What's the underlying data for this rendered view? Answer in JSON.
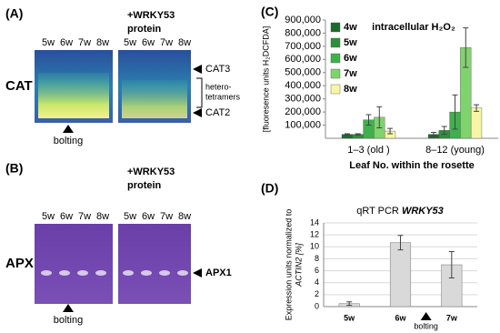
{
  "chart_data": [
    {
      "type": "bar",
      "panel_label": "(C)",
      "title": "intracellular H₂O₂",
      "y_label": "[fluoresence units H₂DCFDA]",
      "x_label": "Leaf No. within the rosette",
      "categories": [
        "1–3 (old )",
        "8–12 (young)"
      ],
      "series": [
        {
          "name": "4w",
          "color": "#1d6b2c",
          "values": [
            30000,
            30000
          ],
          "errors": [
            5000,
            15000
          ]
        },
        {
          "name": "5w",
          "color": "#2f8f3c",
          "values": [
            30000,
            60000
          ],
          "errors": [
            5000,
            30000
          ]
        },
        {
          "name": "6w",
          "color": "#40b04c",
          "values": [
            140000,
            200000
          ],
          "errors": [
            40000,
            130000
          ]
        },
        {
          "name": "7w",
          "color": "#7fd36c",
          "values": [
            160000,
            690000
          ],
          "errors": [
            80000,
            150000
          ]
        },
        {
          "name": "8w",
          "color": "#f6f6a6",
          "values": [
            55000,
            230000
          ],
          "errors": [
            20000,
            25000
          ]
        }
      ],
      "ylim": [
        0,
        900000
      ],
      "yticks": [
        {
          "value": 100000,
          "label": "100,000"
        },
        {
          "value": 200000,
          "label": "200,000"
        },
        {
          "value": 300000,
          "label": "300,000"
        },
        {
          "value": 400000,
          "label": "400,000"
        },
        {
          "value": 500000,
          "label": "500,000"
        },
        {
          "value": 600000,
          "label": "600,000"
        },
        {
          "value": 700000,
          "label": "700,000"
        },
        {
          "value": 800000,
          "label": "800,000"
        },
        {
          "value": 900000,
          "label": "900,000"
        }
      ],
      "grid": false,
      "legend": "upper left"
    },
    {
      "type": "bar",
      "panel_label": "(D)",
      "title": "qRT PCR",
      "title_emphasis": "WRKY53",
      "y_label": [
        "Expression units normalized to",
        "ACTIN2 [%]"
      ],
      "categories": [
        "5w",
        "6w",
        "7w"
      ],
      "values": [
        0.5,
        10.7,
        7.0
      ],
      "errors": [
        0.3,
        1.2,
        2.2
      ],
      "color": "#d9d9d9",
      "ylim": [
        0,
        14
      ],
      "yticks": [
        0,
        2,
        4,
        6,
        8,
        10,
        12,
        14
      ],
      "grid": true,
      "annotation": "bolting"
    }
  ],
  "gels": [
    {
      "panel_label": "(A)",
      "enzyme": "CAT",
      "lanes": [
        "5w",
        "6w",
        "7w",
        "8w"
      ],
      "treatment": [
        "+WRKY53",
        "protein"
      ],
      "bands": [
        "CAT3",
        "CAT2"
      ],
      "bracket": [
        "hetero-",
        "tetramers"
      ],
      "marker": "bolting"
    },
    {
      "panel_label": "(B)",
      "enzyme": "APX",
      "lanes": [
        "5w",
        "6w",
        "7w",
        "8w"
      ],
      "treatment": [
        "+WRKY53",
        "protein"
      ],
      "bands": [
        "APX1"
      ],
      "marker": "bolting"
    }
  ]
}
